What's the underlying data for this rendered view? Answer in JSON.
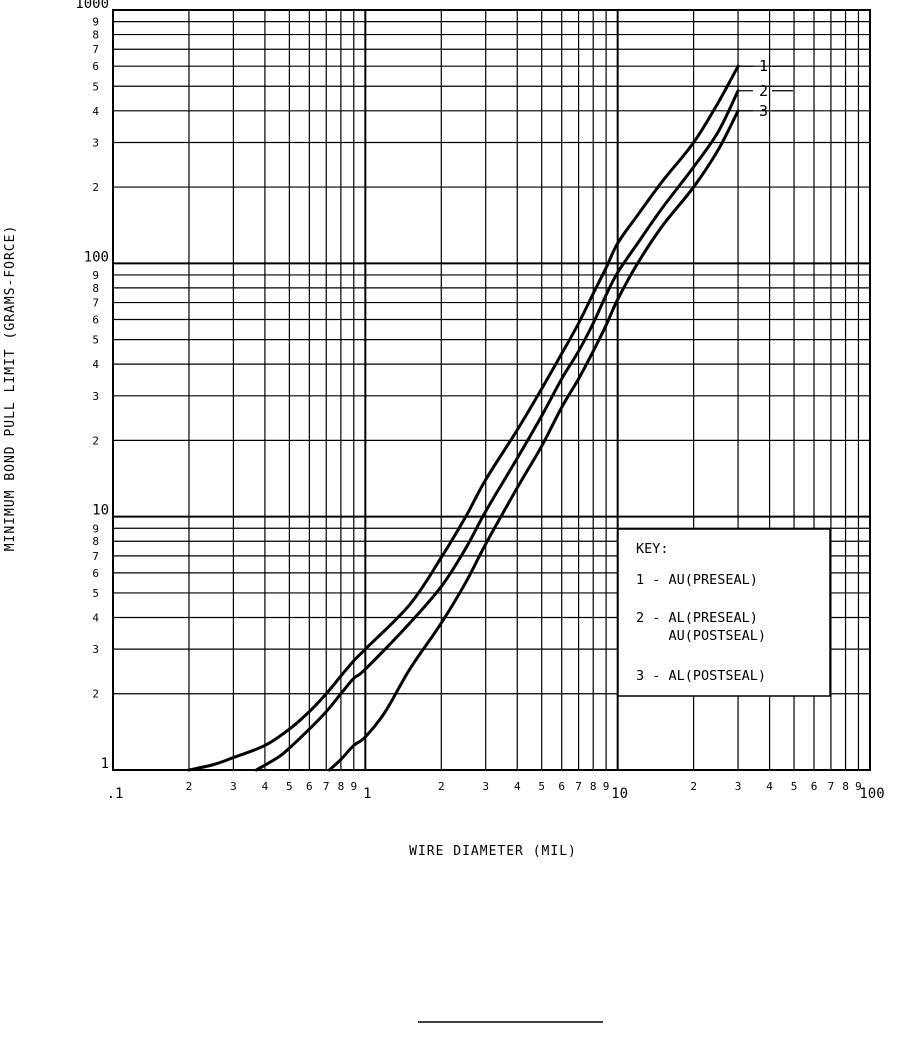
{
  "chart_data": {
    "type": "line",
    "xscale": "log",
    "yscale": "log",
    "xlim": [
      0.1,
      100
    ],
    "ylim": [
      1,
      1000
    ],
    "grid": true,
    "xlabel": "WIRE DIAMETER (MIL)",
    "ylabel": "MINIMUM BOND PULL LIMIT (GRAMS-FORCE)",
    "x_major_tick_labels": [
      ".1",
      "1",
      "10",
      "100"
    ],
    "x_minor_tick_labels": [
      "2",
      "3",
      "4",
      "5",
      "6",
      "7",
      "8",
      "9"
    ],
    "y_major_tick_labels": [
      "1",
      "10",
      "100",
      "1000"
    ],
    "y_minor_tick_labels": [
      "2",
      "3",
      "4",
      "5",
      "6",
      "7",
      "8",
      "9"
    ],
    "key": {
      "title": "KEY:",
      "entries": [
        {
          "lines": [
            "1 - AU(PRESEAL)"
          ]
        },
        {
          "lines": [
            "2 - AL(PRESEAL)",
            "    AU(POSTSEAL)"
          ]
        },
        {
          "lines": [
            "3 - AL(POSTSEAL)"
          ]
        }
      ]
    },
    "series": [
      {
        "name": "1",
        "points": [
          [
            0.2,
            1.0
          ],
          [
            0.25,
            1.05
          ],
          [
            0.3,
            1.12
          ],
          [
            0.4,
            1.25
          ],
          [
            0.5,
            1.45
          ],
          [
            0.6,
            1.7
          ],
          [
            0.7,
            2.0
          ],
          [
            0.8,
            2.35
          ],
          [
            0.9,
            2.7
          ],
          [
            1.0,
            3.0
          ],
          [
            1.5,
            4.5
          ],
          [
            2.0,
            6.9
          ],
          [
            2.5,
            10.0
          ],
          [
            3.0,
            14.0
          ],
          [
            4.0,
            22.0
          ],
          [
            5.0,
            32.0
          ],
          [
            6.0,
            44.0
          ],
          [
            7.0,
            58.0
          ],
          [
            8.0,
            76.0
          ],
          [
            9.0,
            96.0
          ],
          [
            10.0,
            120.0
          ],
          [
            12.0,
            155.0
          ],
          [
            15.0,
            210.0
          ],
          [
            20.0,
            300.0
          ],
          [
            25.0,
            430.0
          ],
          [
            30.0,
            600.0
          ]
        ]
      },
      {
        "name": "2",
        "points": [
          [
            0.37,
            1.0
          ],
          [
            0.45,
            1.12
          ],
          [
            0.5,
            1.22
          ],
          [
            0.6,
            1.45
          ],
          [
            0.7,
            1.7
          ],
          [
            0.8,
            2.0
          ],
          [
            0.9,
            2.3
          ],
          [
            1.0,
            2.5
          ],
          [
            1.5,
            3.8
          ],
          [
            2.0,
            5.3
          ],
          [
            2.5,
            7.5
          ],
          [
            3.0,
            10.5
          ],
          [
            4.0,
            17.0
          ],
          [
            5.0,
            25.0
          ],
          [
            6.0,
            35.0
          ],
          [
            7.0,
            45.0
          ],
          [
            8.0,
            58.0
          ],
          [
            9.0,
            75.0
          ],
          [
            10.0,
            92.0
          ],
          [
            12.0,
            120.0
          ],
          [
            15.0,
            165.0
          ],
          [
            20.0,
            240.0
          ],
          [
            25.0,
            330.0
          ],
          [
            30.0,
            480.0
          ]
        ]
      },
      {
        "name": "3",
        "points": [
          [
            0.72,
            1.0
          ],
          [
            0.8,
            1.1
          ],
          [
            0.9,
            1.25
          ],
          [
            1.0,
            1.35
          ],
          [
            1.2,
            1.7
          ],
          [
            1.5,
            2.5
          ],
          [
            2.0,
            3.8
          ],
          [
            2.5,
            5.5
          ],
          [
            3.0,
            7.8
          ],
          [
            4.0,
            13.0
          ],
          [
            5.0,
            19.0
          ],
          [
            6.0,
            27.0
          ],
          [
            7.0,
            35.0
          ],
          [
            8.0,
            45.0
          ],
          [
            9.0,
            57.0
          ],
          [
            10.0,
            72.0
          ],
          [
            12.0,
            100.0
          ],
          [
            15.0,
            140.0
          ],
          [
            20.0,
            200.0
          ],
          [
            25.0,
            280.0
          ],
          [
            30.0,
            400.0
          ]
        ]
      }
    ]
  }
}
